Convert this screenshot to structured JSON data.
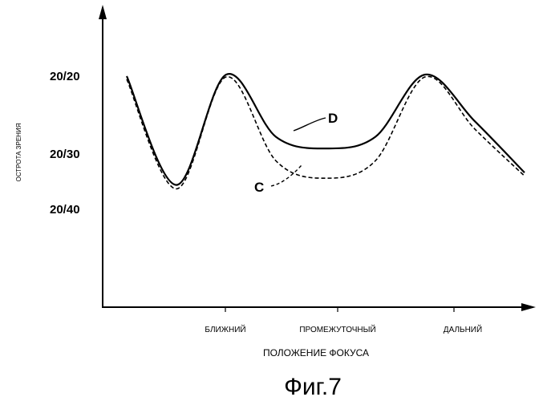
{
  "chart_data": {
    "type": "line",
    "title": "",
    "xlabel": "ПОЛОЖЕНИЕ ФОКУСА",
    "ylabel": "ОСТРОТА ЗРЕНИЯ",
    "categories": [
      "БЛИЖНИЙ",
      "ПРОМЕЖУТОЧНЫЙ",
      "ДАЛЬНИЙ"
    ],
    "yticks": [
      "20/20",
      "20/30",
      "20/40"
    ],
    "x": [
      0,
      0.5,
      1,
      1.5,
      2,
      2.5,
      3,
      3.5,
      4
    ],
    "series": [
      {
        "name": "D",
        "style": "solid",
        "values": [
          20.2,
          35.8,
          20.0,
          28.0,
          29.5,
          28.0,
          20.0,
          26.0,
          33.6
        ]
      },
      {
        "name": "C",
        "style": "dashed",
        "values": [
          20.6,
          36.5,
          20.3,
          31.5,
          34.6,
          31.5,
          20.3,
          27.0,
          34.2
        ]
      }
    ],
    "grid": false,
    "legend": "labels on curves",
    "caption": "Фиг.7"
  }
}
